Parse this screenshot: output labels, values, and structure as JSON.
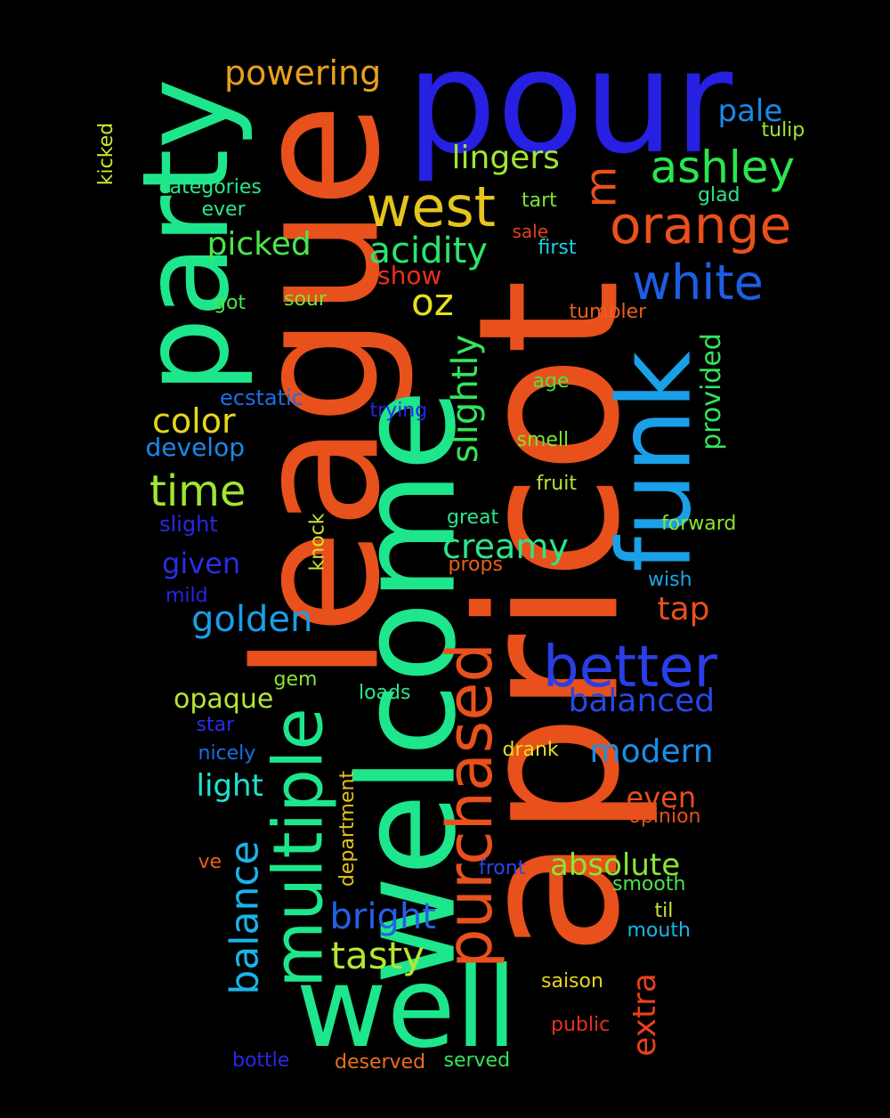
{
  "words": [
    {
      "text": "pour",
      "color": "#2620e2",
      "vertical": false
    },
    {
      "text": "apricot",
      "color": "#e8501c",
      "vertical": true
    },
    {
      "text": "league",
      "color": "#e8501c",
      "vertical": true
    },
    {
      "text": "welcome",
      "color": "#1ee68c",
      "vertical": true
    },
    {
      "text": "well",
      "color": "#1ee68c",
      "vertical": false
    },
    {
      "text": "party",
      "color": "#1ee68c",
      "vertical": true
    },
    {
      "text": "funk",
      "color": "#1aa0e8",
      "vertical": true
    },
    {
      "text": "multiple",
      "color": "#1ee68c",
      "vertical": true
    },
    {
      "text": "purchased",
      "color": "#e8501c",
      "vertical": true
    },
    {
      "text": "better",
      "color": "#2a3ee6",
      "vertical": false
    },
    {
      "text": "west",
      "color": "#e6c41e",
      "vertical": false
    },
    {
      "text": "orange",
      "color": "#e8501c",
      "vertical": false
    },
    {
      "text": "white",
      "color": "#1e5ee6",
      "vertical": false
    },
    {
      "text": "ashley",
      "color": "#2ae64e",
      "vertical": false
    },
    {
      "text": "m",
      "color": "#e8501c",
      "vertical": true
    },
    {
      "text": "balance",
      "color": "#1ab4e8",
      "vertical": true
    },
    {
      "text": "slightly",
      "color": "#32e65a",
      "vertical": true
    },
    {
      "text": "acidity",
      "color": "#2ae66e",
      "vertical": false
    },
    {
      "text": "time",
      "color": "#a0e632",
      "vertical": false
    },
    {
      "text": "golden",
      "color": "#1a9ee8",
      "vertical": false
    },
    {
      "text": "creamy",
      "color": "#2ae68a",
      "vertical": false
    },
    {
      "text": "bright",
      "color": "#2660e6",
      "vertical": false
    },
    {
      "text": "tasty",
      "color": "#b4e632",
      "vertical": false
    },
    {
      "text": "oz",
      "color": "#e6e01e",
      "vertical": false
    },
    {
      "text": "lingers",
      "color": "#a0e632",
      "vertical": false
    },
    {
      "text": "powering",
      "color": "#e8a01c",
      "vertical": false
    },
    {
      "text": "picked",
      "color": "#4ae64a",
      "vertical": false
    },
    {
      "text": "color",
      "color": "#e6d61e",
      "vertical": false
    },
    {
      "text": "balanced",
      "color": "#2648e6",
      "vertical": false
    },
    {
      "text": "modern",
      "color": "#1a8ee8",
      "vertical": false
    },
    {
      "text": "absolute",
      "color": "#8ae632",
      "vertical": false
    },
    {
      "text": "extra",
      "color": "#e8401c",
      "vertical": true
    },
    {
      "text": "provided",
      "color": "#32e65a",
      "vertical": true
    },
    {
      "text": "tap",
      "color": "#e8501c",
      "vertical": false
    },
    {
      "text": "pale",
      "color": "#1a88e8",
      "vertical": false
    },
    {
      "text": "given",
      "color": "#2a2ee6",
      "vertical": false
    },
    {
      "text": "light",
      "color": "#1ae6d0",
      "vertical": false
    },
    {
      "text": "develop",
      "color": "#1a88e8",
      "vertical": false
    },
    {
      "text": "even",
      "color": "#e8501c",
      "vertical": false
    },
    {
      "text": "opaque",
      "color": "#b4e632",
      "vertical": false
    },
    {
      "text": "show",
      "color": "#e8301c",
      "vertical": false
    },
    {
      "text": "ecstatic",
      "color": "#1a6ee8",
      "vertical": false
    },
    {
      "text": "slight",
      "color": "#2a28e6",
      "vertical": false
    },
    {
      "text": "tulip",
      "color": "#a0e632",
      "vertical": false
    },
    {
      "text": "glad",
      "color": "#2ae68a",
      "vertical": false
    },
    {
      "text": "tart",
      "color": "#7ae632",
      "vertical": false
    },
    {
      "text": "sale",
      "color": "#e8401c",
      "vertical": false
    },
    {
      "text": "first",
      "color": "#1ad2e8",
      "vertical": false
    },
    {
      "text": "tumbler",
      "color": "#e8601c",
      "vertical": false
    },
    {
      "text": "categories",
      "color": "#2ae68a",
      "vertical": false
    },
    {
      "text": "ever",
      "color": "#2ae68a",
      "vertical": false
    },
    {
      "text": "got",
      "color": "#4ae64a",
      "vertical": false
    },
    {
      "text": "sour",
      "color": "#7ae632",
      "vertical": false
    },
    {
      "text": "age",
      "color": "#4ae64a",
      "vertical": false
    },
    {
      "text": "trying",
      "color": "#2a22e6",
      "vertical": false
    },
    {
      "text": "smell",
      "color": "#7ae632",
      "vertical": false
    },
    {
      "text": "fruit",
      "color": "#b4e632",
      "vertical": false
    },
    {
      "text": "great",
      "color": "#2ae68a",
      "vertical": false
    },
    {
      "text": "forward",
      "color": "#8ae632",
      "vertical": false
    },
    {
      "text": "knock",
      "color": "#d0e632",
      "vertical": true
    },
    {
      "text": "props",
      "color": "#e8601c",
      "vertical": false
    },
    {
      "text": "wish",
      "color": "#1aa8e8",
      "vertical": false
    },
    {
      "text": "mild",
      "color": "#2a22e6",
      "vertical": false
    },
    {
      "text": "gem",
      "color": "#8ae632",
      "vertical": false
    },
    {
      "text": "loads",
      "color": "#2ae68a",
      "vertical": false
    },
    {
      "text": "star",
      "color": "#2a2ee6",
      "vertical": false
    },
    {
      "text": "nicely",
      "color": "#1a6ee8",
      "vertical": false
    },
    {
      "text": "drank",
      "color": "#e6e01e",
      "vertical": false
    },
    {
      "text": "opinion",
      "color": "#e8501c",
      "vertical": false
    },
    {
      "text": "department",
      "color": "#e6c41e",
      "vertical": true
    },
    {
      "text": "front",
      "color": "#2a48e6",
      "vertical": false
    },
    {
      "text": "ve",
      "color": "#e8601c",
      "vertical": false
    },
    {
      "text": "smooth",
      "color": "#4ae64a",
      "vertical": false
    },
    {
      "text": "til",
      "color": "#d0e632",
      "vertical": false
    },
    {
      "text": "mouth",
      "color": "#1ab4e8",
      "vertical": false
    },
    {
      "text": "saison",
      "color": "#e6d61e",
      "vertical": false
    },
    {
      "text": "public",
      "color": "#e8301c",
      "vertical": false
    },
    {
      "text": "bottle",
      "color": "#2a28e6",
      "vertical": false
    },
    {
      "text": "deserved",
      "color": "#e8701c",
      "vertical": false
    },
    {
      "text": "served",
      "color": "#32e65a",
      "vertical": false
    },
    {
      "text": "kicked",
      "color": "#d0e632",
      "vertical": true
    }
  ]
}
